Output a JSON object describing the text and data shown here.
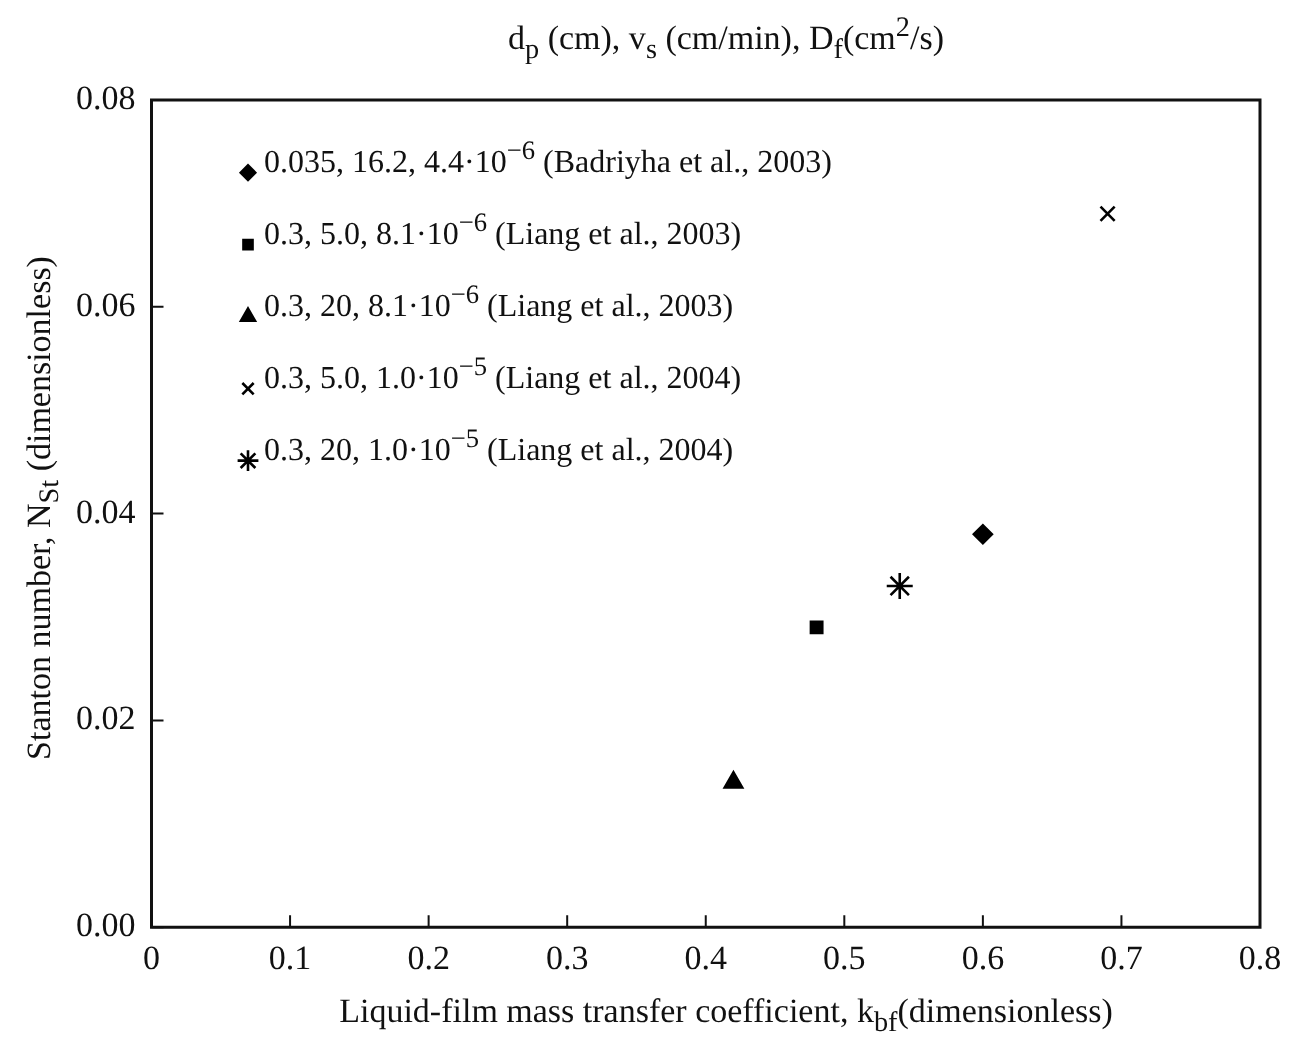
{
  "chart_data": {
    "type": "scatter",
    "title": "d$_{p}$ (cm), v$_{s}$ (cm/min), D$_{f}$(cm$^{2}$/s)",
    "xlabel": "Liquid-film mass transfer coefficient, k$_{bf}$(dimensionless)",
    "ylabel": "Stanton number, N$_{St}$ (dimensionless)",
    "xlim": [
      0,
      0.8
    ],
    "xticks": [
      {
        "value": 0,
        "label": "0"
      },
      0.1,
      0.2,
      0.3,
      0.4,
      0.5,
      0.6,
      0.7,
      0.8
    ],
    "ylim": [
      0,
      0.08
    ],
    "yticks": [
      {
        "value": 0,
        "label": "0.00"
      },
      0.02,
      0.04,
      0.06,
      0.08
    ],
    "grid": false,
    "legend": "top left",
    "series": [
      {
        "name": "0.035, 16.2, 4.4·10$^{−6}$ (Badriyha et al., 2003)",
        "color": "#000000",
        "marker": "diamond",
        "x": [
          0.6
        ],
        "values": [
          0.038
        ]
      },
      {
        "name": "0.3, 5.0, 8.1·10$^{−6}$ (Liang et al., 2003)",
        "color": "#000000",
        "marker": "square",
        "x": [
          0.48
        ],
        "values": [
          0.029
        ]
      },
      {
        "name": "0.3, 20, 8.1·10$^{−6}$ (Liang et al., 2003)",
        "color": "#000000",
        "marker": "triangle",
        "x": [
          0.42
        ],
        "values": [
          0.014
        ]
      },
      {
        "name": "0.3, 5.0, 1.0·10$^{−5}$ (Liang et al., 2004)",
        "color": "#000000",
        "marker": "cross",
        "x": [
          0.69
        ],
        "values": [
          0.069
        ]
      },
      {
        "name": "0.3, 20, 1.0·10$^{−5}$ (Liang et al., 2004)",
        "color": "#000000",
        "x": [
          0.54
        ],
        "values": [
          0.033
        ]
      }
    ]
  }
}
